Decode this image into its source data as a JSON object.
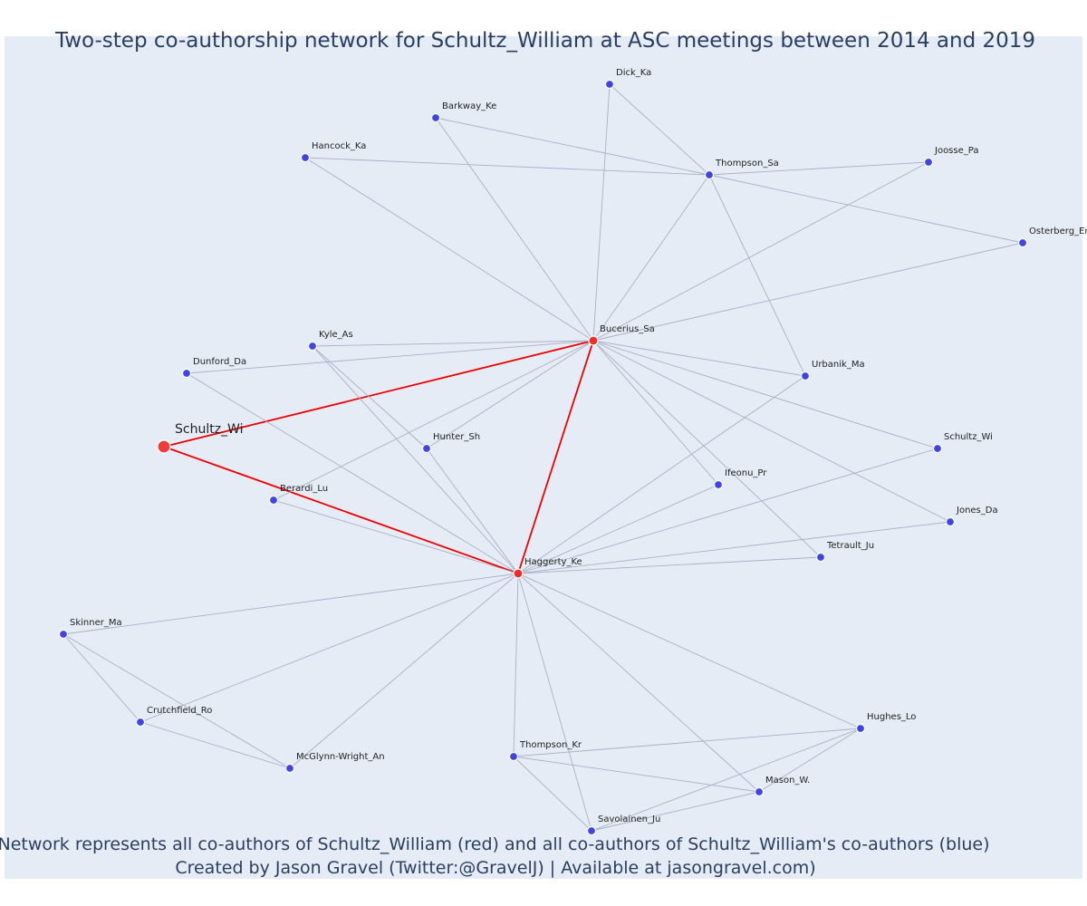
{
  "title": "Two-step co-authorship network for Schultz_William at ASC meetings between 2014 and 2019",
  "caption": {
    "line1": "Network represents all co-authors of Schultz_William (red) and all co-authors of Schultz_William's co-authors (blue)",
    "line2": "Created by Jason Gravel (Twitter:@GravelJ) | Available at jasongravel.com)"
  },
  "colors": {
    "background": "#e5ecf6",
    "coauthor_node": "#ef2b2b",
    "second_step_node": "#3f44e8",
    "focal_edge": "#ef0000",
    "edge": "#aab0c2",
    "text": "#2a3f5f"
  },
  "nodes": [
    {
      "id": "schultz_wi_focal",
      "label": "Schultz_Wi",
      "group": "focal"
    },
    {
      "id": "bucerius",
      "label": "Bucerius_Sa",
      "group": "coauthor"
    },
    {
      "id": "haggerty",
      "label": "Haggerty_Ke",
      "group": "coauthor"
    },
    {
      "id": "dick",
      "label": "Dick_Ka",
      "group": "second"
    },
    {
      "id": "barkway",
      "label": "Barkway_Ke",
      "group": "second"
    },
    {
      "id": "hancock",
      "label": "Hancock_Ka",
      "group": "second"
    },
    {
      "id": "thompson_sa",
      "label": "Thompson_Sa",
      "group": "second"
    },
    {
      "id": "joosse",
      "label": "Joosse_Pa",
      "group": "second"
    },
    {
      "id": "osterberg",
      "label": "Osterberg_Er",
      "group": "second"
    },
    {
      "id": "kyle",
      "label": "Kyle_As",
      "group": "second"
    },
    {
      "id": "dunford",
      "label": "Dunford_Da",
      "group": "second"
    },
    {
      "id": "urbanik",
      "label": "Urbanik_Ma",
      "group": "second"
    },
    {
      "id": "hunter",
      "label": "Hunter_Sh",
      "group": "second"
    },
    {
      "id": "schultz_wi_2",
      "label": "Schultz_Wi",
      "group": "second"
    },
    {
      "id": "ifeonu",
      "label": "Ifeonu_Pr",
      "group": "second"
    },
    {
      "id": "berardi",
      "label": "Berardi_Lu",
      "group": "second"
    },
    {
      "id": "jones",
      "label": "Jones_Da",
      "group": "second"
    },
    {
      "id": "tetrault",
      "label": "Tetrault_Ju",
      "group": "second"
    },
    {
      "id": "skinner",
      "label": "Skinner_Ma",
      "group": "second"
    },
    {
      "id": "crutchfield",
      "label": "Crutchfield_Ro",
      "group": "second"
    },
    {
      "id": "mcglynn",
      "label": "McGlynn-Wright_An",
      "group": "second"
    },
    {
      "id": "thompson_kr",
      "label": "Thompson_Kr",
      "group": "second"
    },
    {
      "id": "hughes",
      "label": "Hughes_Lo",
      "group": "second"
    },
    {
      "id": "mason",
      "label": "Mason_W.",
      "group": "second"
    },
    {
      "id": "savolainen",
      "label": "Savolainen_Ju",
      "group": "second"
    }
  ],
  "edges": [
    [
      "schultz_wi_focal",
      "bucerius"
    ],
    [
      "schultz_wi_focal",
      "haggerty"
    ],
    [
      "bucerius",
      "haggerty"
    ],
    [
      "dick",
      "thompson_sa"
    ],
    [
      "dick",
      "bucerius"
    ],
    [
      "barkway",
      "thompson_sa"
    ],
    [
      "barkway",
      "bucerius"
    ],
    [
      "hancock",
      "thompson_sa"
    ],
    [
      "hancock",
      "bucerius"
    ],
    [
      "thompson_sa",
      "joosse"
    ],
    [
      "thompson_sa",
      "osterberg"
    ],
    [
      "thompson_sa",
      "bucerius"
    ],
    [
      "thompson_sa",
      "urbanik"
    ],
    [
      "joosse",
      "bucerius"
    ],
    [
      "osterberg",
      "bucerius"
    ],
    [
      "kyle",
      "bucerius"
    ],
    [
      "dunford",
      "bucerius"
    ],
    [
      "urbanik",
      "bucerius"
    ],
    [
      "hunter",
      "bucerius"
    ],
    [
      "schultz_wi_2",
      "bucerius"
    ],
    [
      "ifeonu",
      "bucerius"
    ],
    [
      "berardi",
      "bucerius"
    ],
    [
      "jones",
      "bucerius"
    ],
    [
      "tetrault",
      "bucerius"
    ],
    [
      "kyle",
      "haggerty"
    ],
    [
      "kyle",
      "hunter"
    ],
    [
      "dunford",
      "haggerty"
    ],
    [
      "hunter",
      "haggerty"
    ],
    [
      "berardi",
      "haggerty"
    ],
    [
      "urbanik",
      "haggerty"
    ],
    [
      "ifeonu",
      "haggerty"
    ],
    [
      "schultz_wi_2",
      "haggerty"
    ],
    [
      "jones",
      "haggerty"
    ],
    [
      "tetrault",
      "haggerty"
    ],
    [
      "skinner",
      "haggerty"
    ],
    [
      "skinner",
      "crutchfield"
    ],
    [
      "skinner",
      "mcglynn"
    ],
    [
      "crutchfield",
      "haggerty"
    ],
    [
      "crutchfield",
      "mcglynn"
    ],
    [
      "mcglynn",
      "haggerty"
    ],
    [
      "thompson_kr",
      "haggerty"
    ],
    [
      "thompson_kr",
      "hughes"
    ],
    [
      "thompson_kr",
      "mason"
    ],
    [
      "thompson_kr",
      "savolainen"
    ],
    [
      "hughes",
      "haggerty"
    ],
    [
      "hughes",
      "mason"
    ],
    [
      "hughes",
      "savolainen"
    ],
    [
      "mason",
      "haggerty"
    ],
    [
      "mason",
      "savolainen"
    ],
    [
      "savolainen",
      "haggerty"
    ]
  ]
}
